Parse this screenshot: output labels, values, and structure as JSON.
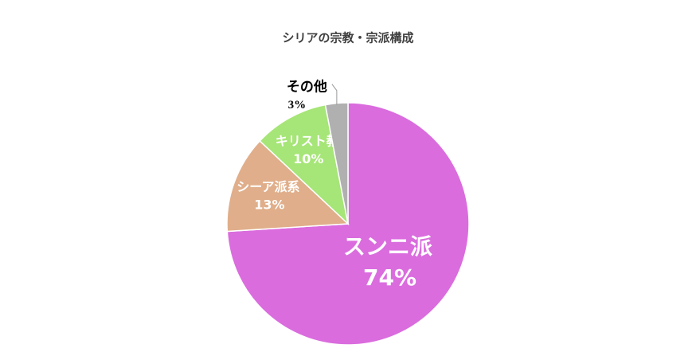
{
  "chart_data": {
    "type": "pie",
    "title": "シリアの宗教・宗派構成",
    "categories": [
      "スンニ派",
      "シーア派系",
      "キリスト教",
      "その他"
    ],
    "values": [
      74,
      13,
      10,
      3
    ],
    "value_labels": [
      "74%",
      "13%",
      "10%",
      "3%"
    ],
    "colors": [
      "#da6cde",
      "#e0ae8a",
      "#a6e577",
      "#b0b0b0"
    ]
  }
}
